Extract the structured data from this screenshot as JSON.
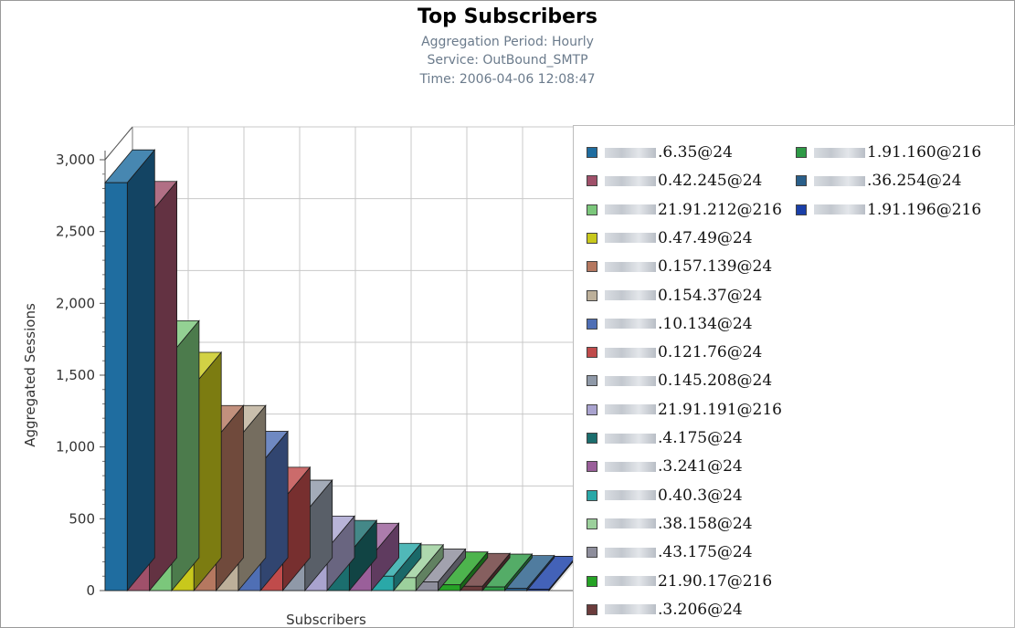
{
  "header": {
    "title": "Top Subscribers",
    "subtitle_period": "Aggregation Period: Hourly",
    "subtitle_service": "Service: OutBound_SMTP",
    "subtitle_time": "Time: 2006-04-06 12:08:47"
  },
  "chart_data": {
    "type": "bar",
    "title": "Top Subscribers",
    "xlabel": "Subscribers",
    "ylabel": "Aggregated Sessions",
    "ylim": [
      0,
      3000
    ],
    "yticks": [
      0,
      500,
      1000,
      1500,
      2000,
      2500,
      3000
    ],
    "y_tick_labels": [
      "0",
      "500",
      "1,000",
      "1,500",
      "2,000",
      "2,500",
      "3,000"
    ],
    "grid": true,
    "legend_position": "right",
    "series": [
      {
        "name": ".6.35@24",
        "value": 2840,
        "color": "#1f6da0"
      },
      {
        "name": "0.42.245@24",
        "value": 2620,
        "color": "#a0506a"
      },
      {
        "name": "21.91.212@216",
        "value": 1650,
        "color": "#7bc77b"
      },
      {
        "name": "0.47.49@24",
        "value": 1430,
        "color": "#c8c81c"
      },
      {
        "name": "0.157.139@24",
        "value": 1060,
        "color": "#b57860"
      },
      {
        "name": "0.154.37@24",
        "value": 1060,
        "color": "#bdb09a"
      },
      {
        "name": ".10.134@24",
        "value": 880,
        "color": "#4f6fb5"
      },
      {
        "name": "0.121.76@24",
        "value": 630,
        "color": "#c04b4b"
      },
      {
        "name": "0.145.208@24",
        "value": 540,
        "color": "#8f99a8"
      },
      {
        "name": "21.91.191@216",
        "value": 290,
        "color": "#a9a3cf"
      },
      {
        "name": ".4.175@24",
        "value": 260,
        "color": "#1b6e6e"
      },
      {
        "name": ".3.241@24",
        "value": 240,
        "color": "#9a5f9a"
      },
      {
        "name": "0.40.3@24",
        "value": 100,
        "color": "#2aa8a8"
      },
      {
        "name": ".38.158@24",
        "value": 90,
        "color": "#9cd09c"
      },
      {
        "name": ".43.175@24",
        "value": 60,
        "color": "#8e8e9c"
      },
      {
        "name": "21.90.17@216",
        "value": 40,
        "color": "#26a326"
      },
      {
        "name": ".3.206@24",
        "value": 30,
        "color": "#6b3c3c"
      },
      {
        "name": "1.91.160@216",
        "value": 25,
        "color": "#2e9a46"
      },
      {
        "name": ".36.254@24",
        "value": 15,
        "color": "#2a5f8a"
      },
      {
        "name": "1.91.196@216",
        "value": 10,
        "color": "#1a3fa8"
      }
    ]
  }
}
